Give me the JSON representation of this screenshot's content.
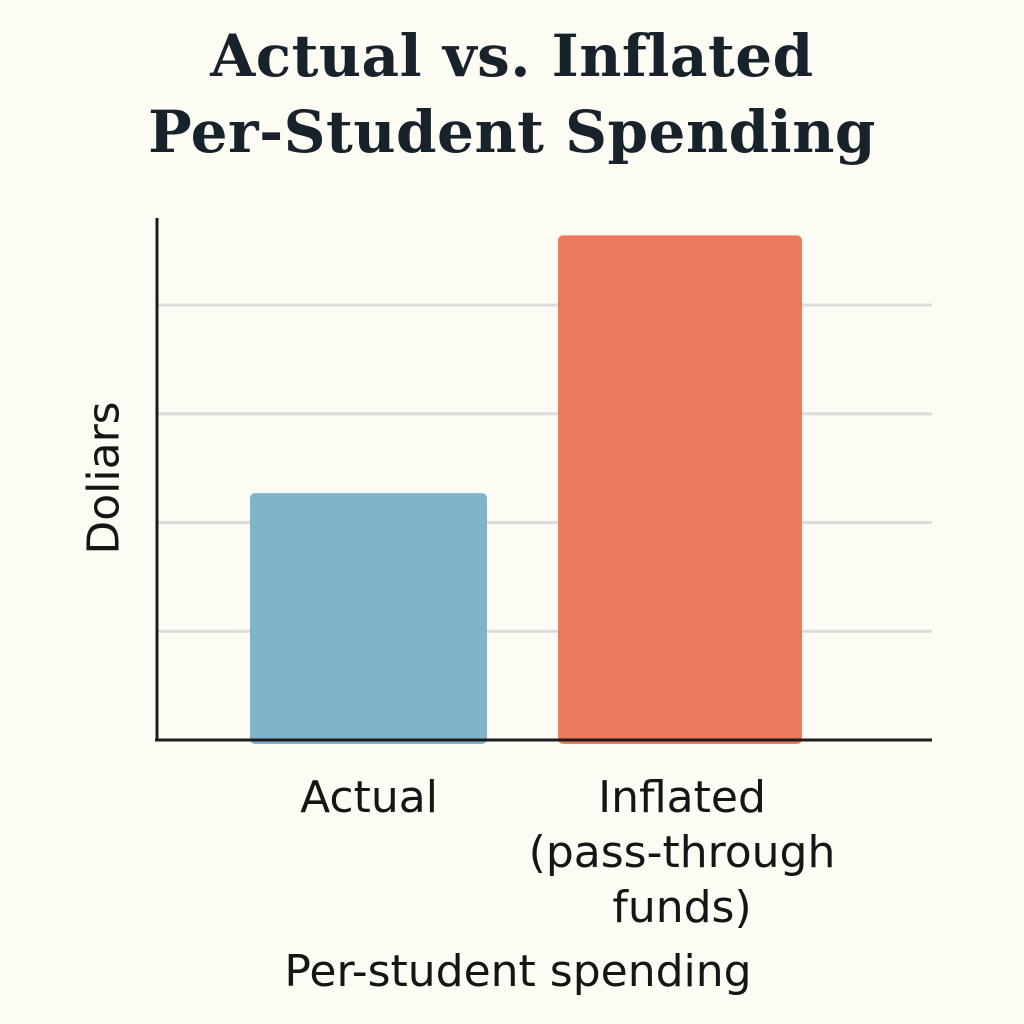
{
  "chart_data": {
    "type": "bar",
    "title": "Actual vs. Inflated Per-Student Spending",
    "title_lines": [
      "Actual vs. Inflated",
      "Per-Student Spending"
    ],
    "xlabel": "Per-student spending",
    "ylabel": "Doliars",
    "categories": [
      "Actual",
      "Inflated\n(pass-through\nfunds)"
    ],
    "values": [
      2.27,
      4.64
    ],
    "colors": [
      "#7fb5cb",
      "#ec7a5c"
    ],
    "ylim": [
      0,
      4.8
    ],
    "gridlines": [
      1,
      2,
      3,
      4
    ],
    "grid": true,
    "tick_labels_shown": false
  }
}
